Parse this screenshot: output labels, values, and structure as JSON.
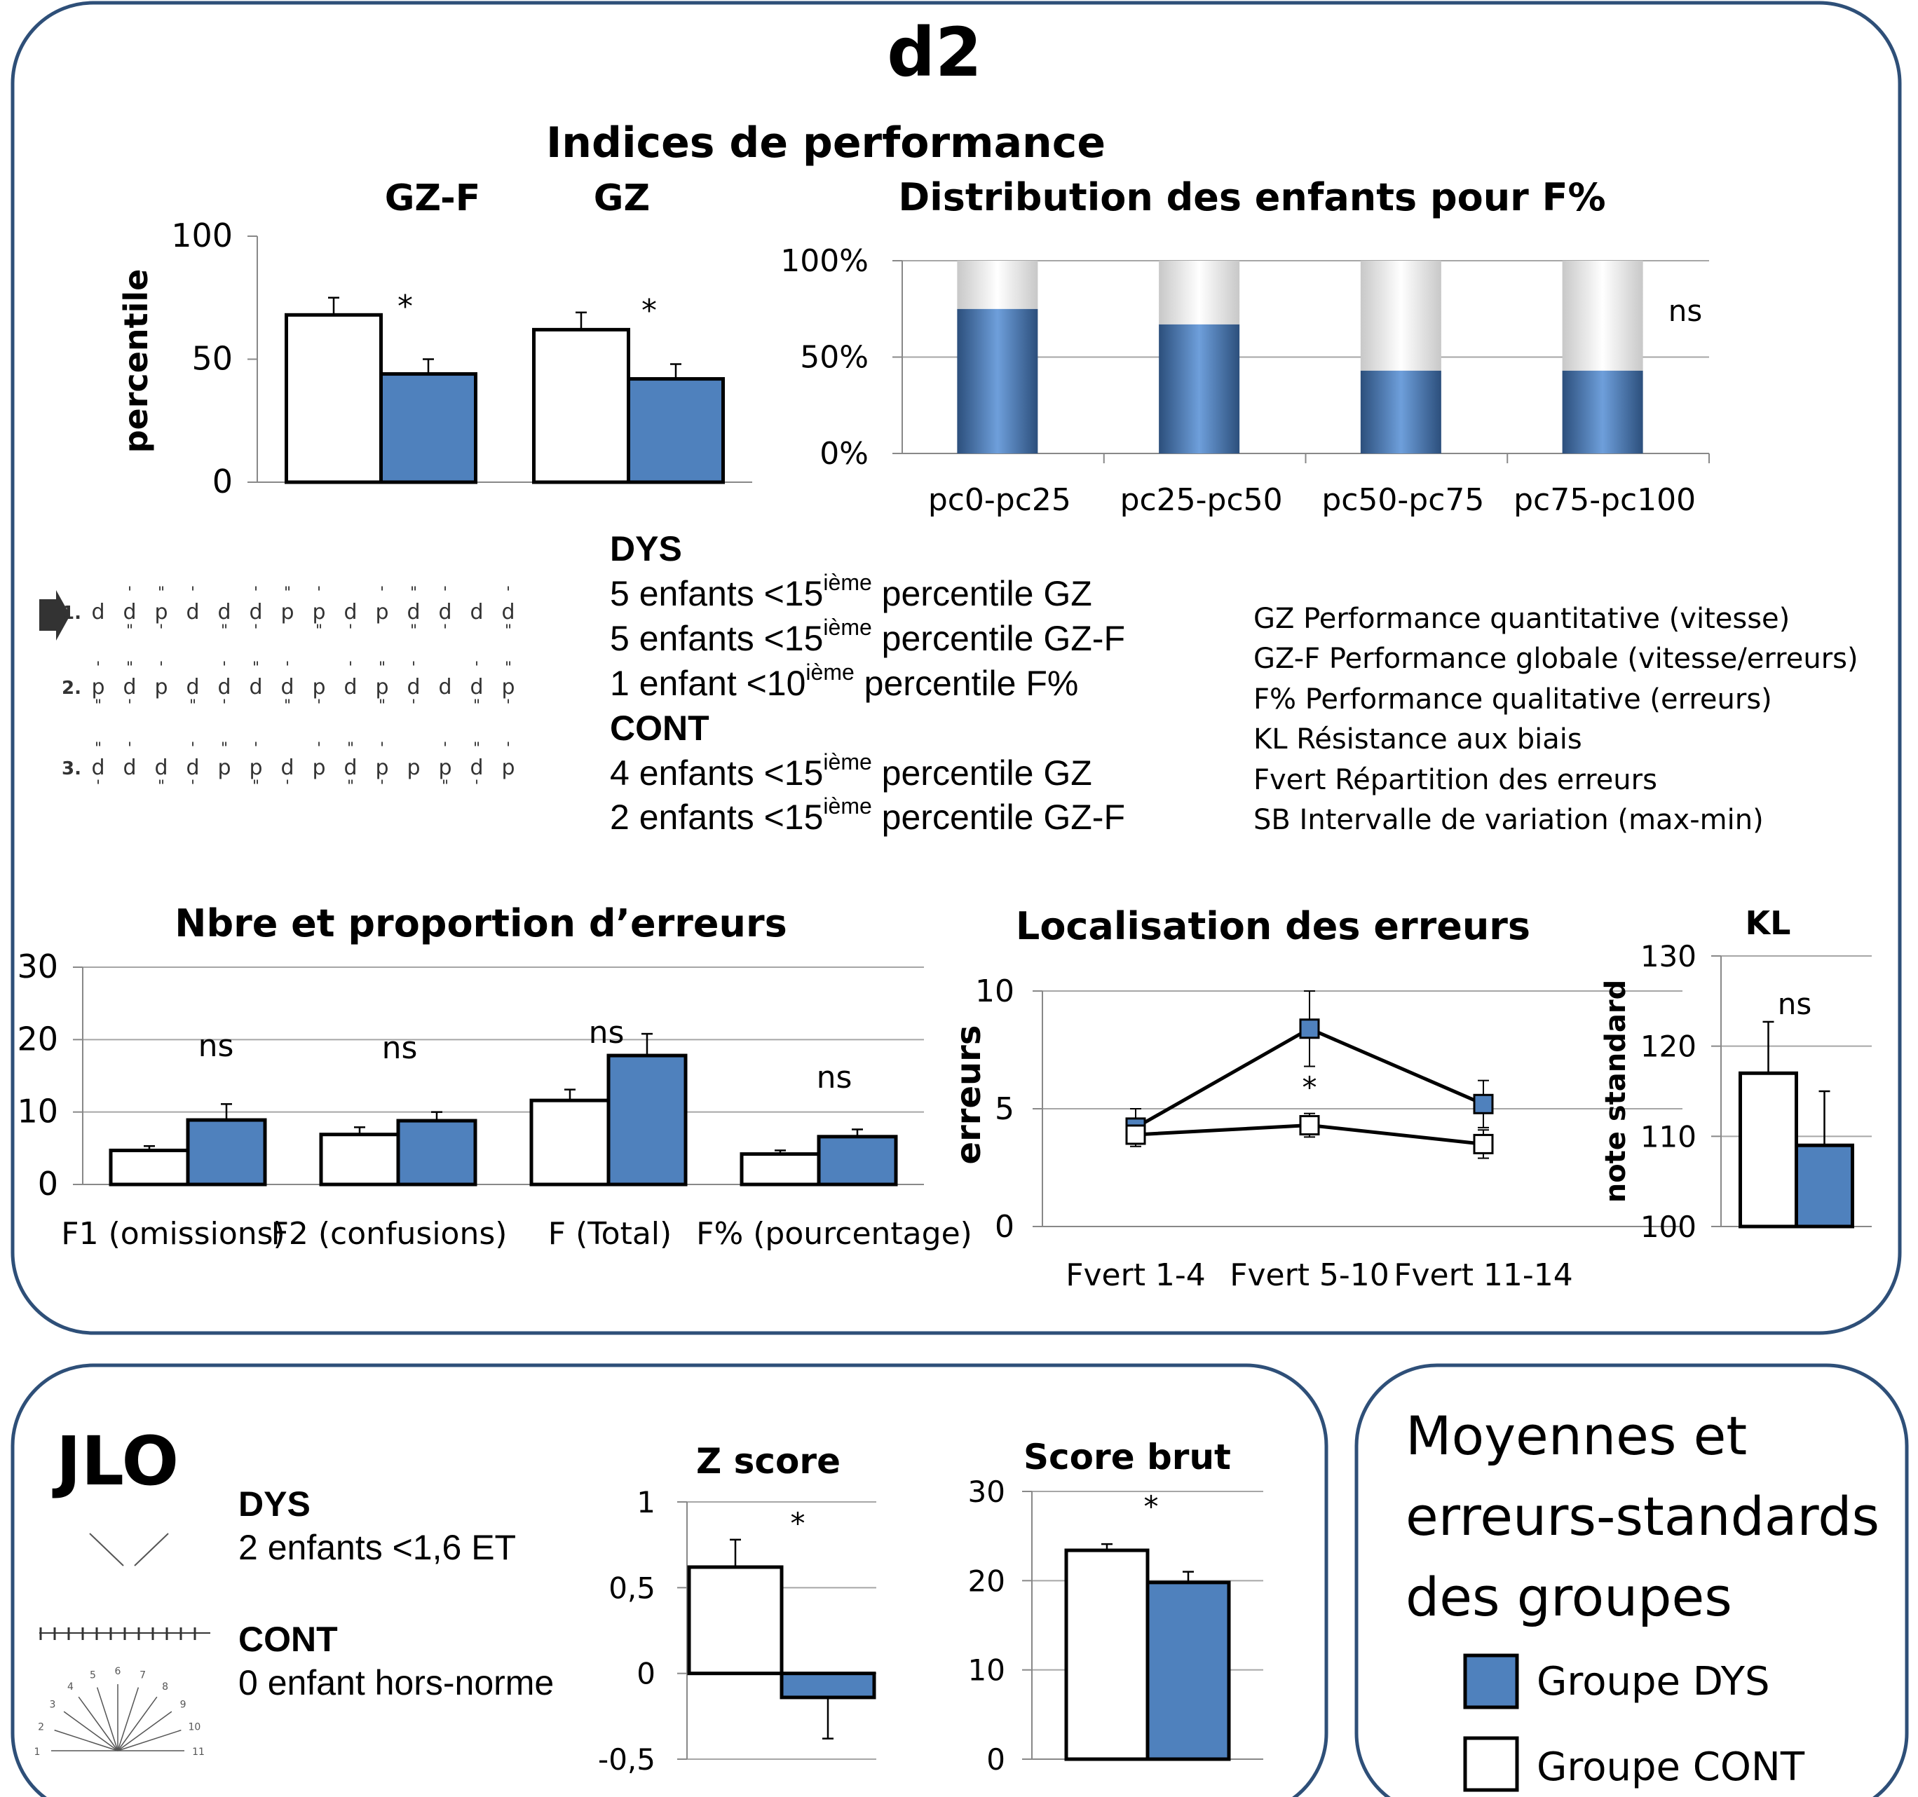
{
  "page_title": "d2",
  "section_title": "Indices de performance",
  "stats_text": {
    "dys_heading": "DYS",
    "dys_lines": [
      {
        "pre": "5 enfants <15",
        "sup": "ième",
        "post": " percentile GZ"
      },
      {
        "pre": "5 enfants <15",
        "sup": "ième",
        "post": " percentile GZ-F"
      },
      {
        "pre": "1 enfant <10",
        "sup": "ième",
        "post": " percentile F%"
      }
    ],
    "cont_heading": "CONT",
    "cont_lines": [
      {
        "pre": "4 enfants <15",
        "sup": "ième",
        "post": " percentile GZ"
      },
      {
        "pre": "2 enfants <15",
        "sup": "ième",
        "post": " percentile GZ-F"
      }
    ]
  },
  "definitions": [
    "GZ Performance quantitative (vitesse)",
    "GZ-F Performance globale (vitesse/erreurs)",
    "F% Performance qualitative (erreurs)",
    "KL Résistance aux biais",
    "Fvert Répartition des erreurs",
    "SB Intervalle de variation (max-min)"
  ],
  "d2_sample": {
    "row_numbers": [
      "1.",
      "2.",
      "3."
    ],
    "rows": [
      [
        "d",
        "d",
        "p",
        "d",
        "d",
        "d",
        "p",
        "p",
        "d",
        "p",
        "d",
        "d",
        "d",
        "d"
      ],
      [
        "p",
        "d",
        "p",
        "d",
        "d",
        "d",
        "d",
        "p",
        "d",
        "p",
        "d",
        "d",
        "d",
        "p"
      ],
      [
        "d",
        "d",
        "d",
        "d",
        "p",
        "p",
        "d",
        "p",
        "d",
        "p",
        "p",
        "p",
        "d",
        "p"
      ]
    ]
  },
  "jlo": {
    "title": "JLO",
    "dys_heading": "DYS",
    "dys_line": "2 enfants <1,6 ET",
    "cont_heading": "CONT",
    "cont_line": "0 enfant hors-norme",
    "protractor_labels": [
      "1",
      "2",
      "3",
      "4",
      "5",
      "6",
      "7",
      "8",
      "9",
      "10",
      "11"
    ]
  },
  "legend_box": {
    "title_lines": [
      "Moyennes et",
      "erreurs-standards",
      "des groupes"
    ],
    "items": [
      {
        "label": "Groupe DYS",
        "color": "#4F81BD"
      },
      {
        "label": "Groupe CONT",
        "color": "#FFFFFF"
      }
    ]
  },
  "colors": {
    "dys": "#4F81BD",
    "cont": "#FFFFFF",
    "frame": "#2E4F78",
    "grid": "#A6A6A6"
  },
  "chart_data": [
    {
      "id": "percentile",
      "type": "bar",
      "categories": [
        "GZ-F",
        "GZ"
      ],
      "series": [
        {
          "name": "Groupe CONT",
          "values": [
            68,
            62
          ],
          "errors": [
            7,
            7
          ]
        },
        {
          "name": "Groupe DYS",
          "values": [
            44,
            42
          ],
          "errors": [
            6,
            6
          ]
        }
      ],
      "ylabel": "percentile",
      "ylim": [
        0,
        100
      ],
      "yticks": [
        "0",
        "50",
        "100"
      ],
      "significance": [
        "*",
        "*"
      ]
    },
    {
      "id": "distribution",
      "type": "bar",
      "title": "Distribution des enfants pour F%",
      "categories": [
        "pc0-pc25",
        "pc25-pc50",
        "pc50-pc75",
        "pc75-pc100"
      ],
      "stacked": true,
      "series": [
        {
          "name": "Groupe DYS",
          "values": [
            75,
            67,
            43,
            43
          ]
        },
        {
          "name": "Groupe CONT",
          "values": [
            25,
            33,
            57,
            57
          ]
        }
      ],
      "ylim": [
        0,
        100
      ],
      "yticks": [
        "0%",
        "50%",
        "100%"
      ],
      "annotation": "ns"
    },
    {
      "id": "erreurs",
      "type": "bar",
      "title": "Nbre et proportion d’erreurs",
      "categories": [
        "F1 (omissions)",
        "F2 (confusions)",
        "F (Total)",
        "F% (pourcentage)"
      ],
      "series": [
        {
          "name": "Groupe CONT",
          "values": [
            4.7,
            6.9,
            11.6,
            4.2
          ],
          "errors": [
            0.6,
            1.0,
            1.5,
            0.5
          ]
        },
        {
          "name": "Groupe DYS",
          "values": [
            8.9,
            8.8,
            17.8,
            6.6
          ],
          "errors": [
            2.2,
            1.2,
            3.0,
            1.0
          ]
        }
      ],
      "ylim": [
        0,
        30
      ],
      "yticks": [
        "0",
        "10",
        "20",
        "30"
      ],
      "significance": [
        "ns",
        "ns",
        "ns",
        "ns"
      ]
    },
    {
      "id": "localisation",
      "type": "line",
      "title": "Localisation des erreurs",
      "categories": [
        "Fvert 1-4",
        "Fvert 5-10",
        "Fvert 11-14"
      ],
      "series": [
        {
          "name": "Groupe DYS",
          "values": [
            4.2,
            8.4,
            5.2
          ],
          "errors": [
            0.8,
            1.6,
            1.0
          ]
        },
        {
          "name": "Groupe CONT",
          "values": [
            3.9,
            4.3,
            3.5
          ],
          "errors": [
            0.4,
            0.5,
            0.6
          ]
        }
      ],
      "ylabel": "erreurs",
      "ylim": [
        0,
        10
      ],
      "yticks": [
        "0",
        "5",
        "10"
      ],
      "significance": [
        "",
        "*",
        ""
      ]
    },
    {
      "id": "kl",
      "type": "bar",
      "title": "KL",
      "categories": [
        ""
      ],
      "series": [
        {
          "name": "Groupe CONT",
          "values": [
            117
          ],
          "errors": [
            5.7
          ]
        },
        {
          "name": "Groupe DYS",
          "values": [
            109
          ],
          "errors": [
            6
          ]
        }
      ],
      "ylabel": "note standard",
      "ylim": [
        100,
        130
      ],
      "yticks": [
        "100",
        "110",
        "120",
        "130"
      ],
      "significance": [
        "ns"
      ]
    },
    {
      "id": "zscore",
      "type": "bar",
      "title": "Z score",
      "categories": [
        ""
      ],
      "series": [
        {
          "name": "Groupe CONT",
          "values": [
            0.62
          ],
          "errors": [
            0.16
          ]
        },
        {
          "name": "Groupe DYS",
          "values": [
            -0.14
          ],
          "errors": [
            0.24
          ]
        }
      ],
      "ylim": [
        -0.5,
        1
      ],
      "yticks": [
        "-0,5",
        "0",
        "0,5",
        "1"
      ],
      "significance": [
        "*"
      ]
    },
    {
      "id": "scorebrut",
      "type": "bar",
      "title": "Score brut",
      "categories": [
        ""
      ],
      "series": [
        {
          "name": "Groupe CONT",
          "values": [
            23.4
          ],
          "errors": [
            0.7
          ]
        },
        {
          "name": "Groupe DYS",
          "values": [
            19.8
          ],
          "errors": [
            1.2
          ]
        }
      ],
      "ylim": [
        0,
        30
      ],
      "yticks": [
        "0",
        "10",
        "20",
        "30"
      ],
      "significance": [
        "*"
      ]
    }
  ]
}
